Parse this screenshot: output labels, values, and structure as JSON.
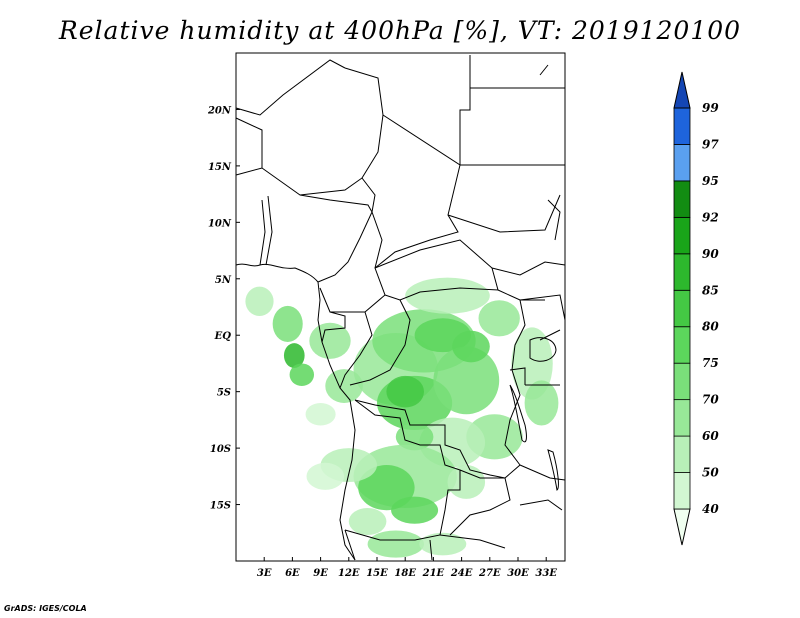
{
  "title": "Relative humidity at 400hPa [%], VT: 2019120100",
  "credit": "GrADS: IGES/COLA",
  "map": {
    "lon_range": [
      0,
      35
    ],
    "lat_range": [
      -20,
      25
    ],
    "x_ticks": [
      "3E",
      "6E",
      "9E",
      "12E",
      "15E",
      "18E",
      "21E",
      "24E",
      "27E",
      "30E",
      "33E"
    ],
    "x_tick_values": [
      3,
      6,
      9,
      12,
      15,
      18,
      21,
      24,
      27,
      30,
      33
    ],
    "y_ticks": [
      "20N",
      "15N",
      "10N",
      "5N",
      "EQ",
      "5S",
      "10S",
      "15S"
    ],
    "y_tick_values": [
      20,
      15,
      10,
      5,
      0,
      -5,
      -10,
      -15
    ]
  },
  "colorbar": {
    "levels": [
      "40",
      "50",
      "60",
      "70",
      "75",
      "80",
      "85",
      "90",
      "92",
      "95",
      "97",
      "99"
    ],
    "colors": [
      "#f0fff0",
      "#d2f7d2",
      "#b8f0b8",
      "#98e898",
      "#7adf7a",
      "#5cd65c",
      "#44c844",
      "#2db82d",
      "#19a519",
      "#128c12",
      "#5aa0f0",
      "#1e64dc",
      "#1446b4"
    ]
  },
  "humidity_patches": [
    {
      "lon": 2.5,
      "lat": 3.0,
      "rlon": 1.5,
      "rlat": 1.3,
      "level": 2
    },
    {
      "lon": 5.5,
      "lat": 1.0,
      "rlon": 1.6,
      "rlat": 1.6,
      "level": 4
    },
    {
      "lon": 6.2,
      "lat": -1.8,
      "rlon": 1.1,
      "rlat": 1.1,
      "level": 7
    },
    {
      "lon": 7.0,
      "lat": -3.5,
      "rlon": 1.3,
      "rlat": 1.0,
      "level": 5
    },
    {
      "lon": 10.0,
      "lat": -0.5,
      "rlon": 2.2,
      "rlat": 1.6,
      "level": 3
    },
    {
      "lon": 11.5,
      "lat": -4.5,
      "rlon": 2.0,
      "rlat": 1.5,
      "level": 3
    },
    {
      "lon": 9.0,
      "lat": -7.0,
      "rlon": 1.6,
      "rlat": 1.0,
      "level": 1
    },
    {
      "lon": 17.0,
      "lat": -3.0,
      "rlon": 4.5,
      "rlat": 3.2,
      "level": 3
    },
    {
      "lon": 20.0,
      "lat": -0.5,
      "rlon": 5.5,
      "rlat": 2.8,
      "level": 4
    },
    {
      "lon": 22.0,
      "lat": 0.0,
      "rlon": 3.0,
      "rlat": 1.5,
      "level": 5
    },
    {
      "lon": 19.0,
      "lat": -6.0,
      "rlon": 4.0,
      "rlat": 2.4,
      "level": 5
    },
    {
      "lon": 18.0,
      "lat": -5.0,
      "rlon": 2.0,
      "rlat": 1.4,
      "level": 6
    },
    {
      "lon": 24.5,
      "lat": -4.0,
      "rlon": 3.5,
      "rlat": 3.0,
      "level": 4
    },
    {
      "lon": 25.0,
      "lat": -1.0,
      "rlon": 2.0,
      "rlat": 1.4,
      "level": 5
    },
    {
      "lon": 22.5,
      "lat": 3.5,
      "rlon": 4.5,
      "rlat": 1.6,
      "level": 2
    },
    {
      "lon": 28.0,
      "lat": 1.5,
      "rlon": 2.2,
      "rlat": 1.6,
      "level": 3
    },
    {
      "lon": 31.5,
      "lat": -2.5,
      "rlon": 2.2,
      "rlat": 3.2,
      "level": 2
    },
    {
      "lon": 32.5,
      "lat": -6.0,
      "rlon": 1.8,
      "rlat": 2.0,
      "level": 3
    },
    {
      "lon": 27.5,
      "lat": -9.0,
      "rlon": 3.0,
      "rlat": 2.0,
      "level": 3
    },
    {
      "lon": 23.0,
      "lat": -9.5,
      "rlon": 3.5,
      "rlat": 2.2,
      "level": 2
    },
    {
      "lon": 19.0,
      "lat": -9.0,
      "rlon": 2.0,
      "rlat": 1.2,
      "level": 4
    },
    {
      "lon": 18.0,
      "lat": -12.5,
      "rlon": 5.5,
      "rlat": 2.8,
      "level": 3
    },
    {
      "lon": 16.0,
      "lat": -13.5,
      "rlon": 3.0,
      "rlat": 2.0,
      "level": 5
    },
    {
      "lon": 19.0,
      "lat": -15.5,
      "rlon": 2.5,
      "rlat": 1.2,
      "level": 5
    },
    {
      "lon": 12.0,
      "lat": -11.5,
      "rlon": 3.0,
      "rlat": 1.5,
      "level": 2
    },
    {
      "lon": 9.5,
      "lat": -12.5,
      "rlon": 2.0,
      "rlat": 1.2,
      "level": 1
    },
    {
      "lon": 24.5,
      "lat": -13.0,
      "rlon": 2.0,
      "rlat": 1.5,
      "level": 2
    },
    {
      "lon": 17.0,
      "lat": -18.5,
      "rlon": 3.0,
      "rlat": 1.2,
      "level": 3
    },
    {
      "lon": 22.0,
      "lat": -18.5,
      "rlon": 2.5,
      "rlat": 1.0,
      "level": 2
    },
    {
      "lon": 14.0,
      "lat": -16.5,
      "rlon": 2.0,
      "rlat": 1.2,
      "level": 2
    }
  ]
}
